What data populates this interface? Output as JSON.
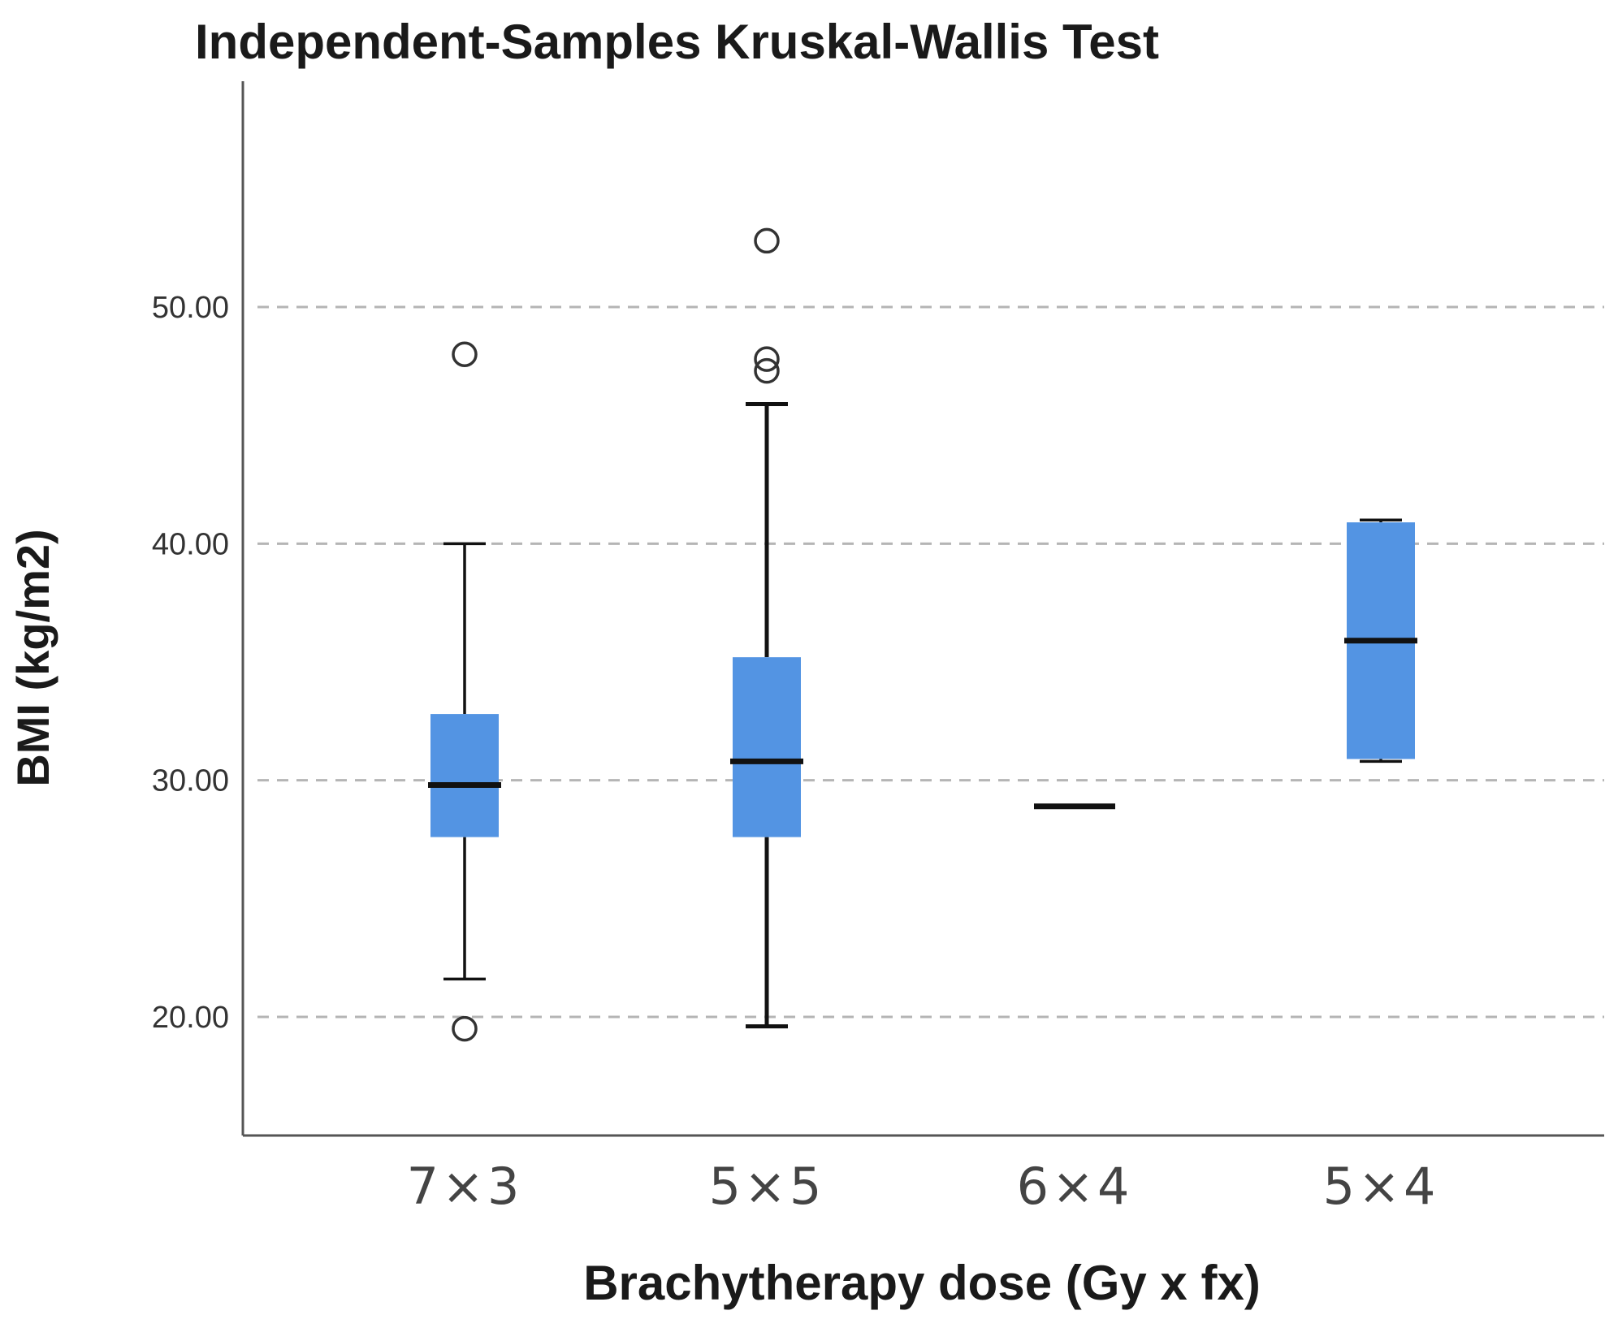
{
  "chart_data": {
    "type": "boxplot",
    "title": "Independent-Samples Kruskal-Wallis Test",
    "xlabel": "Brachytherapy dose (Gy x fx)",
    "ylabel": "BMI (kg/m2)",
    "ylim": [
      15.0,
      58.5
    ],
    "yticks": [
      20,
      30,
      40,
      50
    ],
    "ytick_labels": [
      "20.00",
      "30.00",
      "40.00",
      "50.00"
    ],
    "grid": "horizontal dashed",
    "box_color": "#5394E3",
    "categories": [
      "7×3",
      "5×5",
      "6×4",
      "5×4"
    ],
    "groups": [
      {
        "label": "7×3",
        "whisker_low": 21.6,
        "q1": 27.6,
        "median": 29.8,
        "q3": 32.8,
        "whisker_high": 40.0,
        "outliers": [
          48.0,
          19.5
        ]
      },
      {
        "label": "5×5",
        "whisker_low": 19.6,
        "q1": 27.6,
        "median": 30.8,
        "q3": 35.2,
        "whisker_high": 45.9,
        "outliers": [
          52.8,
          47.8,
          47.3
        ]
      },
      {
        "label": "6×4",
        "whisker_low": 28.9,
        "q1": 28.9,
        "median": 28.9,
        "q3": 28.9,
        "whisker_high": 28.9,
        "outliers": []
      },
      {
        "label": "5×4",
        "whisker_low": 30.8,
        "q1": 30.9,
        "median": 35.9,
        "q3": 40.9,
        "whisker_high": 41.0,
        "outliers": []
      }
    ]
  }
}
